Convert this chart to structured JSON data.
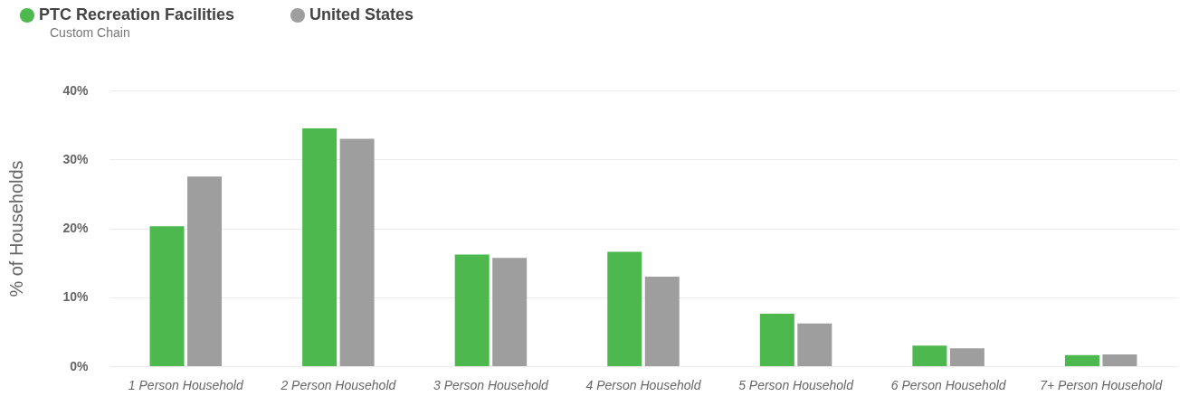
{
  "chart_data": {
    "type": "bar",
    "ylabel": "% of Households",
    "legend": "top left",
    "grid": "y",
    "categories": [
      "1 Person Household",
      "2 Person Household",
      "3 Person Household",
      "4 Person Household",
      "5 Person Household",
      "6 Person Household",
      "7+ Person Household"
    ],
    "series": [
      {
        "name": "PTC Recreation Facilities",
        "color": "#4db84e",
        "values": [
          20.3,
          34.5,
          16.2,
          16.6,
          7.6,
          3.0,
          1.6
        ]
      },
      {
        "name": "United States",
        "color": "#9e9e9e",
        "values": [
          27.5,
          33.0,
          15.7,
          13.0,
          6.2,
          2.6,
          1.7
        ]
      }
    ],
    "ylim": [
      0,
      40
    ],
    "yticks": [
      {
        "value": 0,
        "label": "0%"
      },
      {
        "value": 10,
        "label": "10%"
      },
      {
        "value": 20,
        "label": "20%"
      },
      {
        "value": 30,
        "label": "30%"
      },
      {
        "value": 40,
        "label": "40%"
      }
    ],
    "annotations": [
      "Custom Chain"
    ]
  }
}
